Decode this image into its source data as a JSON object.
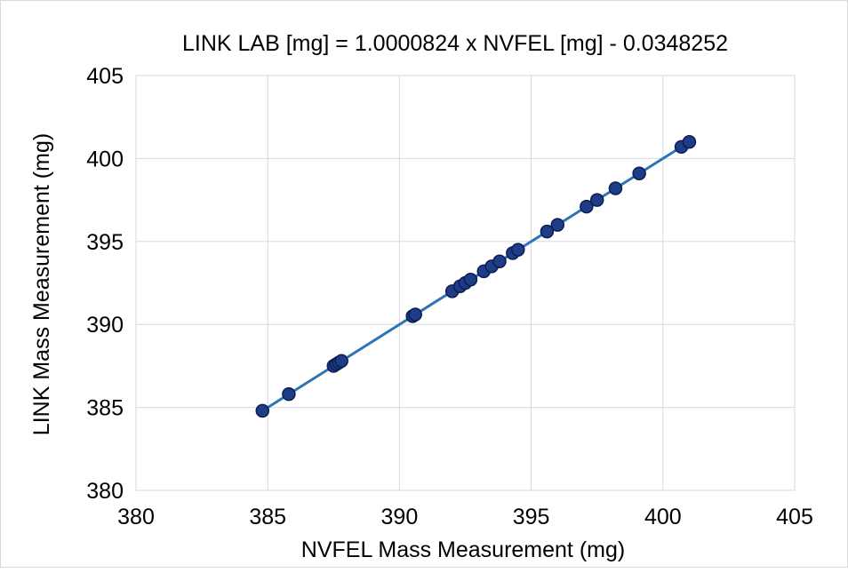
{
  "chart_data": {
    "type": "scatter",
    "title": "LINK LAB [mg] = 1.0000824 x NVFEL [mg] - 0.0348252",
    "xlabel": "NVFEL Mass Measurement (mg)",
    "ylabel": "LINK  Mass Measurement (mg)",
    "xlim": [
      380,
      405
    ],
    "ylim": [
      380,
      405
    ],
    "xticks": [
      380,
      385,
      390,
      395,
      400,
      405
    ],
    "yticks": [
      380,
      385,
      390,
      395,
      400,
      405
    ],
    "grid": true,
    "legend": "none",
    "marker_color": "#1f3c88",
    "marker_edge_color": "#0b1e52",
    "trendline_color": "#2e75b6",
    "gridline_color": "#d9d9d9",
    "trendline": {
      "slope": 1.0000824,
      "intercept": -0.0348252,
      "x_range": [
        384.8,
        401.0
      ]
    },
    "points": [
      {
        "x": 384.8,
        "y": 384.8
      },
      {
        "x": 385.8,
        "y": 385.8
      },
      {
        "x": 387.5,
        "y": 387.5
      },
      {
        "x": 387.6,
        "y": 387.6
      },
      {
        "x": 387.7,
        "y": 387.7
      },
      {
        "x": 387.8,
        "y": 387.8
      },
      {
        "x": 390.5,
        "y": 390.5
      },
      {
        "x": 390.6,
        "y": 390.6
      },
      {
        "x": 392.0,
        "y": 392.0
      },
      {
        "x": 392.3,
        "y": 392.3
      },
      {
        "x": 392.5,
        "y": 392.5
      },
      {
        "x": 392.7,
        "y": 392.7
      },
      {
        "x": 393.2,
        "y": 393.2
      },
      {
        "x": 393.5,
        "y": 393.5
      },
      {
        "x": 393.8,
        "y": 393.8
      },
      {
        "x": 394.3,
        "y": 394.3
      },
      {
        "x": 394.5,
        "y": 394.5
      },
      {
        "x": 395.6,
        "y": 395.6
      },
      {
        "x": 396.0,
        "y": 396.0
      },
      {
        "x": 397.1,
        "y": 397.1
      },
      {
        "x": 397.5,
        "y": 397.5
      },
      {
        "x": 398.2,
        "y": 398.2
      },
      {
        "x": 399.1,
        "y": 399.1
      },
      {
        "x": 400.7,
        "y": 400.7
      },
      {
        "x": 401.0,
        "y": 401.0
      }
    ]
  }
}
